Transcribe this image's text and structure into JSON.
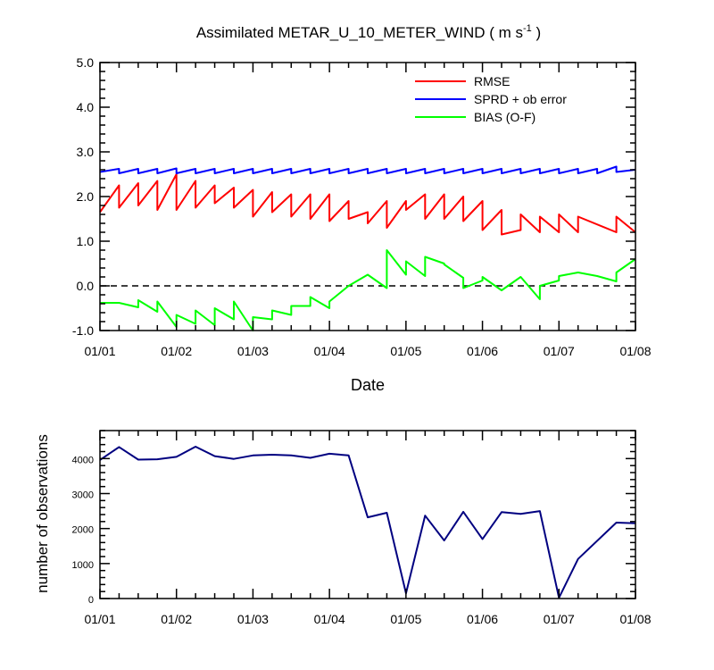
{
  "chart_data": [
    {
      "type": "line",
      "title": "Assimilated METAR_U_10_METER_WIND ( m s",
      "title_superscript": "-1",
      "title_close": " )",
      "xlabel": "Date",
      "ylabel": "",
      "xlim": [
        0,
        7
      ],
      "ylim": [
        -1.0,
        5.0
      ],
      "x_tick_labels": [
        "01/01",
        "01/02",
        "01/03",
        "01/04",
        "01/05",
        "01/06",
        "01/07",
        "01/08"
      ],
      "y_tick_values": [
        -1.0,
        0.0,
        1.0,
        2.0,
        3.0,
        4.0,
        5.0
      ],
      "y_tick_labels": [
        "-1.0",
        "0.0",
        "1.0",
        "2.0",
        "3.0",
        "4.0",
        "5.0"
      ],
      "reference_line": 0.0,
      "legend_position": "top-right",
      "series": [
        {
          "name": "RMSE",
          "color": "#ff0000",
          "x": [
            0,
            0.25,
            0.25,
            0.5,
            0.5,
            0.75,
            0.75,
            1.0,
            1.0,
            1.25,
            1.25,
            1.5,
            1.5,
            1.75,
            1.75,
            2.0,
            2.0,
            2.25,
            2.25,
            2.5,
            2.5,
            2.75,
            2.75,
            3.0,
            3.0,
            3.25,
            3.25,
            3.5,
            3.5,
            3.75,
            3.75,
            4.0,
            4.0,
            4.25,
            4.25,
            4.5,
            4.5,
            4.75,
            4.75,
            5.0,
            5.0,
            5.25,
            5.25,
            5.5,
            5.5,
            5.75,
            5.75,
            6.0,
            6.0,
            6.25,
            6.25,
            6.75,
            6.75,
            7.0
          ],
          "y": [
            1.65,
            2.25,
            1.75,
            2.3,
            1.8,
            2.35,
            1.7,
            2.5,
            1.7,
            2.35,
            1.75,
            2.25,
            1.85,
            2.2,
            1.75,
            2.15,
            1.55,
            2.1,
            1.65,
            2.05,
            1.55,
            2.05,
            1.5,
            2.05,
            1.45,
            1.9,
            1.5,
            1.65,
            1.4,
            1.9,
            1.3,
            1.9,
            1.7,
            2.05,
            1.5,
            2.05,
            1.5,
            2.0,
            1.45,
            1.9,
            1.25,
            1.7,
            1.15,
            1.25,
            1.6,
            1.2,
            1.55,
            1.2,
            1.6,
            1.2,
            1.55,
            1.2,
            1.55,
            1.2
          ]
        },
        {
          "name": "SPRD + ob error",
          "color": "#0000ff",
          "x": [
            0,
            0.25,
            0.25,
            0.5,
            0.5,
            0.75,
            0.75,
            1.0,
            1.0,
            1.25,
            1.25,
            1.5,
            1.5,
            1.75,
            1.75,
            2.0,
            2.0,
            2.25,
            2.25,
            2.5,
            2.5,
            2.75,
            2.75,
            3.0,
            3.0,
            3.25,
            3.25,
            3.5,
            3.5,
            3.75,
            3.75,
            4.0,
            4.0,
            4.25,
            4.25,
            4.5,
            4.5,
            4.75,
            4.75,
            5.0,
            5.0,
            5.25,
            5.25,
            5.5,
            5.5,
            5.75,
            5.75,
            6.0,
            6.0,
            6.25,
            6.25,
            6.5,
            6.5,
            6.75,
            6.75,
            7.0
          ],
          "y": [
            2.55,
            2.62,
            2.52,
            2.62,
            2.52,
            2.62,
            2.52,
            2.63,
            2.52,
            2.62,
            2.52,
            2.62,
            2.52,
            2.62,
            2.52,
            2.62,
            2.52,
            2.62,
            2.52,
            2.62,
            2.52,
            2.62,
            2.52,
            2.62,
            2.52,
            2.62,
            2.52,
            2.62,
            2.52,
            2.62,
            2.52,
            2.62,
            2.52,
            2.62,
            2.52,
            2.62,
            2.52,
            2.62,
            2.52,
            2.62,
            2.52,
            2.62,
            2.52,
            2.62,
            2.52,
            2.62,
            2.52,
            2.62,
            2.52,
            2.62,
            2.52,
            2.62,
            2.52,
            2.67,
            2.55,
            2.6
          ]
        },
        {
          "name": "BIAS (O-F)",
          "color": "#00ff00",
          "x": [
            0,
            0.25,
            0.5,
            0.5,
            0.75,
            0.75,
            1.0,
            1.0,
            1.25,
            1.25,
            1.5,
            1.5,
            1.75,
            1.75,
            2.0,
            2.0,
            2.25,
            2.25,
            2.5,
            2.5,
            2.75,
            2.75,
            3.0,
            3.0,
            3.25,
            3.5,
            3.75,
            3.75,
            4.0,
            4.0,
            4.25,
            4.25,
            4.5,
            4.5,
            4.75,
            4.75,
            5.0,
            5.0,
            5.25,
            5.5,
            5.75,
            5.75,
            6.0,
            6.0,
            6.25,
            6.5,
            6.75,
            6.75,
            7.0
          ],
          "y": [
            -0.38,
            -0.38,
            -0.48,
            -0.32,
            -0.58,
            -0.35,
            -0.92,
            -0.65,
            -0.85,
            -0.55,
            -0.88,
            -0.5,
            -0.75,
            -0.35,
            -1.0,
            -0.7,
            -0.75,
            -0.55,
            -0.65,
            -0.45,
            -0.45,
            -0.25,
            -0.5,
            -0.35,
            0.0,
            0.25,
            -0.05,
            0.8,
            0.25,
            0.55,
            0.22,
            0.65,
            0.5,
            0.48,
            0.18,
            -0.05,
            0.12,
            0.2,
            -0.1,
            0.2,
            -0.3,
            0.0,
            0.12,
            0.22,
            0.3,
            0.22,
            0.1,
            0.3,
            0.6
          ]
        }
      ]
    },
    {
      "type": "line",
      "title": "",
      "xlabel": "",
      "ylabel": "number of observations",
      "xlim": [
        0,
        7
      ],
      "ylim": [
        0,
        4800
      ],
      "x_tick_labels": [
        "01/01",
        "01/02",
        "01/03",
        "01/04",
        "01/05",
        "01/06",
        "01/07",
        "01/08"
      ],
      "y_tick_values": [
        0,
        1000,
        2000,
        3000,
        4000
      ],
      "y_tick_labels": [
        "0",
        "1000",
        "2000",
        "3000",
        "4000"
      ],
      "series": [
        {
          "name": "number of observations",
          "color": "#000080",
          "x": [
            0,
            0.25,
            0.5,
            0.75,
            1.0,
            1.25,
            1.5,
            1.75,
            2.0,
            2.25,
            2.5,
            2.75,
            3.0,
            3.25,
            3.5,
            3.75,
            4.0,
            4.25,
            4.5,
            4.75,
            5.0,
            5.25,
            5.5,
            5.75,
            6.0,
            6.25,
            6.75,
            7.0
          ],
          "y": [
            3960,
            4330,
            3970,
            3980,
            4050,
            4340,
            4070,
            3990,
            4090,
            4110,
            4090,
            4020,
            4140,
            4090,
            2320,
            2450,
            150,
            2370,
            1660,
            2480,
            1700,
            2470,
            2420,
            2500,
            20,
            1130,
            2170,
            2150
          ]
        }
      ]
    }
  ]
}
